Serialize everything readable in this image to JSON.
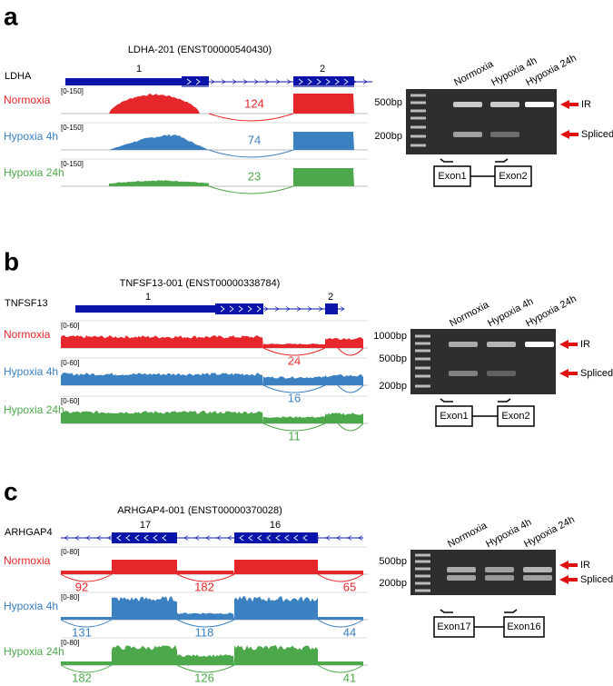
{
  "panels": [
    {
      "letter": "a",
      "transcript": "LDHA-201 (ENST00000540430)",
      "gene": "LDHA",
      "exons": [
        "1",
        "2"
      ],
      "tracks": [
        {
          "label": "Normoxia",
          "range": "[0-150]",
          "junctions": [
            124
          ]
        },
        {
          "label": "Hypoxia 4h",
          "range": "[0-150]",
          "junctions": [
            74
          ]
        },
        {
          "label": "Hypoxia 24h",
          "range": "[0-150]",
          "junctions": [
            23
          ]
        }
      ],
      "gel": {
        "lanes": [
          "Normoxia",
          "Hypoxia 4h",
          "Hypoxia 24h"
        ],
        "ladder": [
          "500bp",
          "200bp"
        ],
        "bands": [
          "IR",
          "Spliced"
        ],
        "primers": [
          "Exon1",
          "Exon2"
        ]
      }
    },
    {
      "letter": "b",
      "transcript": "TNFSF13-001 (ENST00000338784)",
      "gene": "TNFSF13",
      "exons": [
        "1",
        "2"
      ],
      "tracks": [
        {
          "label": "Normoxia",
          "range": "[0-60]",
          "junctions": [
            24
          ]
        },
        {
          "label": "Hypoxia 4h",
          "range": "[0-60]",
          "junctions": [
            16
          ]
        },
        {
          "label": "Hypoxia 24h",
          "range": "[0-60]",
          "junctions": [
            11
          ]
        }
      ],
      "gel": {
        "lanes": [
          "Normoxia",
          "Hypoxia 4h",
          "Hypoxia 24h"
        ],
        "ladder": [
          "1000bp",
          "500bp",
          "200bp"
        ],
        "bands": [
          "IR",
          "Spliced"
        ],
        "primers": [
          "Exon1",
          "Exon2"
        ]
      }
    },
    {
      "letter": "c",
      "transcript": "ARHGAP4-001 (ENST00000370028)",
      "gene": "ARHGAP4",
      "exons": [
        "17",
        "16"
      ],
      "tracks": [
        {
          "label": "Normoxia",
          "range": "[0-80]",
          "junctions": [
            92,
            182,
            65
          ]
        },
        {
          "label": "Hypoxia 4h",
          "range": "[0-80]",
          "junctions": [
            131,
            118,
            44
          ]
        },
        {
          "label": "Hypoxia 24h",
          "range": "[0-80]",
          "junctions": [
            182,
            126,
            41
          ]
        }
      ],
      "gel": {
        "lanes": [
          "Normoxia",
          "Hypoxia 4h",
          "Hypoxia 24h"
        ],
        "ladder": [
          "500bp",
          "200bp"
        ],
        "bands": [
          "IR",
          "Spliced"
        ],
        "primers": [
          "Exon17",
          "Exon16"
        ]
      }
    }
  ]
}
